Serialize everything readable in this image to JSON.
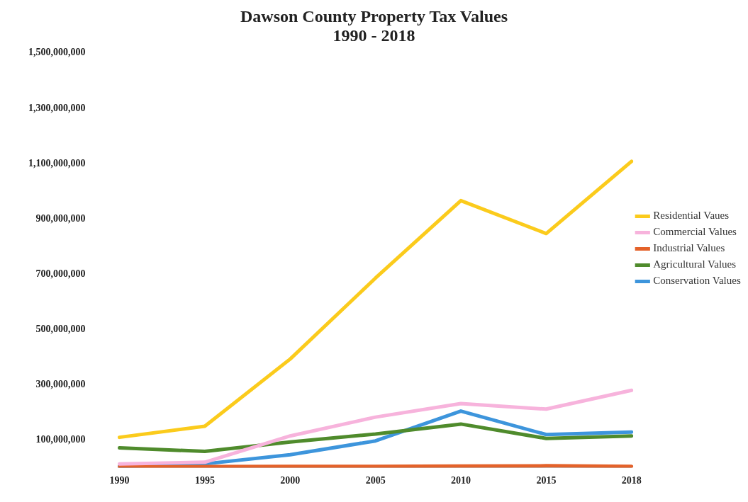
{
  "chart_data": {
    "type": "line",
    "title": "Dawson County Property Tax Values\n1990 - 2018",
    "categories": [
      "1990",
      "1995",
      "2000",
      "2005",
      "2010",
      "2015",
      "2018"
    ],
    "series": [
      {
        "name": "Residential Vaues",
        "color": "#fbcb1c",
        "values": [
          110000000,
          150000000,
          393000000,
          686000000,
          966000000,
          847000000,
          1108000000
        ]
      },
      {
        "name": "Commercial Values",
        "color": "#f7b3dc",
        "values": [
          14000000,
          20000000,
          115000000,
          183000000,
          232000000,
          212000000,
          280000000
        ]
      },
      {
        "name": "Industrial Values",
        "color": "#e4622a",
        "values": [
          3000000,
          4000000,
          5000000,
          5000000,
          6000000,
          7000000,
          5000000
        ]
      },
      {
        "name": "Agricultural Values",
        "color": "#4f8b2c",
        "values": [
          72000000,
          59000000,
          93000000,
          122000000,
          158000000,
          106000000,
          115000000
        ]
      },
      {
        "name": "Conservation Values",
        "color": "#3d95dc",
        "values": [
          5000000,
          14000000,
          47000000,
          97000000,
          205000000,
          120000000,
          129000000
        ]
      }
    ],
    "ylim": [
      0,
      1500000000
    ],
    "yticks": [
      {
        "value": 100000000,
        "label": "100,000,000"
      },
      {
        "value": 300000000,
        "label": "300,000,000"
      },
      {
        "value": 500000000,
        "label": "500,000,000"
      },
      {
        "value": 700000000,
        "label": "700,000,000"
      },
      {
        "value": 900000000,
        "label": "900,000,000"
      },
      {
        "value": 1100000000,
        "label": "1,100,000,000"
      },
      {
        "value": 1300000000,
        "label": "1,300,000,000"
      },
      {
        "value": 1500000000,
        "label": "1,500,000,000"
      }
    ],
    "grid": false,
    "legend": "right",
    "marker": "none"
  }
}
